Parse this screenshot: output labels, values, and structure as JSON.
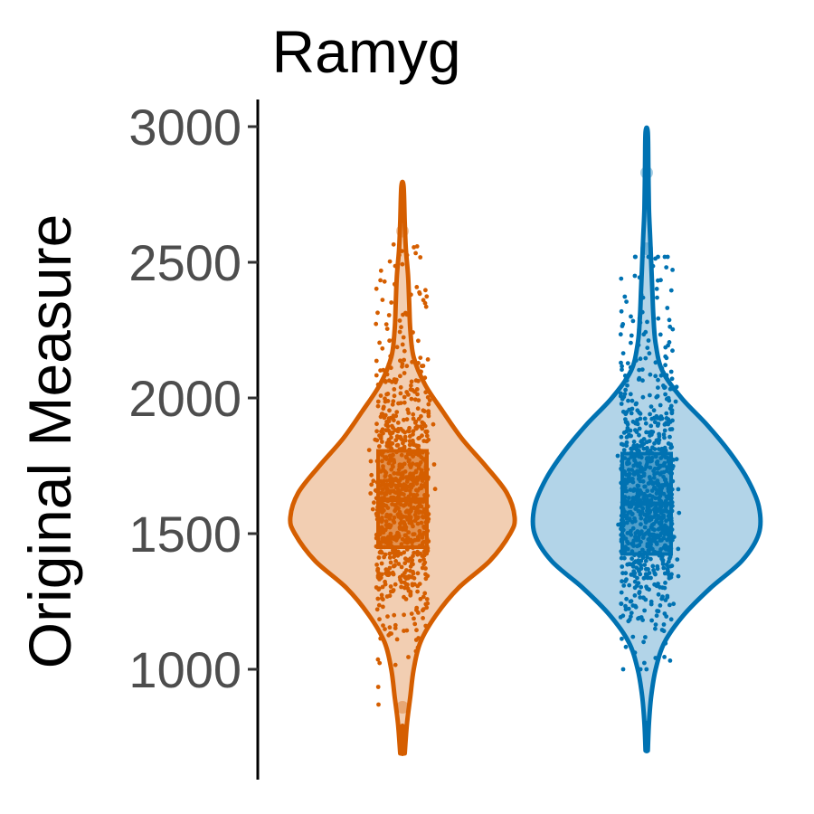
{
  "chart_data": {
    "type": "violin",
    "title": "Ramyg",
    "xlabel": "",
    "ylabel": "Original Measure",
    "ylim": [
      660,
      3100
    ],
    "yticks": [
      1000,
      1500,
      2000,
      2500,
      3000
    ],
    "grid": false,
    "legend": "none",
    "groups": [
      {
        "color": "#D55E00",
        "median": 1625,
        "q1": 1450,
        "q3": 1805,
        "min": 690,
        "max": 2780,
        "outliers": [
          2615,
          860
        ],
        "jitter_range": [
          870,
          2620
        ],
        "density_profile": [
          [
            690,
            0.02
          ],
          [
            800,
            0.04
          ],
          [
            900,
            0.07
          ],
          [
            1000,
            0.1
          ],
          [
            1100,
            0.16
          ],
          [
            1200,
            0.3
          ],
          [
            1300,
            0.5
          ],
          [
            1400,
            0.78
          ],
          [
            1500,
            0.96
          ],
          [
            1560,
            1.0
          ],
          [
            1650,
            0.93
          ],
          [
            1750,
            0.74
          ],
          [
            1850,
            0.53
          ],
          [
            1950,
            0.36
          ],
          [
            2050,
            0.2
          ],
          [
            2150,
            0.1
          ],
          [
            2250,
            0.07
          ],
          [
            2350,
            0.06
          ],
          [
            2450,
            0.05
          ],
          [
            2550,
            0.03
          ],
          [
            2650,
            0.02
          ],
          [
            2780,
            0.01
          ]
        ]
      },
      {
        "color": "#0072B2",
        "median": 1610,
        "q1": 1425,
        "q3": 1795,
        "min": 700,
        "max": 2980,
        "outliers": [
          2830,
          2550
        ],
        "jitter_range": [
          1000,
          2520
        ],
        "density_profile": [
          [
            700,
            0.01
          ],
          [
            800,
            0.02
          ],
          [
            900,
            0.04
          ],
          [
            1000,
            0.08
          ],
          [
            1100,
            0.16
          ],
          [
            1200,
            0.33
          ],
          [
            1300,
            0.57
          ],
          [
            1400,
            0.85
          ],
          [
            1500,
            1.0
          ],
          [
            1600,
            1.0
          ],
          [
            1700,
            0.9
          ],
          [
            1800,
            0.74
          ],
          [
            1900,
            0.54
          ],
          [
            2000,
            0.31
          ],
          [
            2100,
            0.14
          ],
          [
            2200,
            0.08
          ],
          [
            2300,
            0.06
          ],
          [
            2400,
            0.05
          ],
          [
            2500,
            0.04
          ],
          [
            2600,
            0.03
          ],
          [
            2700,
            0.02
          ],
          [
            2850,
            0.015
          ],
          [
            2980,
            0.01
          ]
        ]
      }
    ]
  }
}
